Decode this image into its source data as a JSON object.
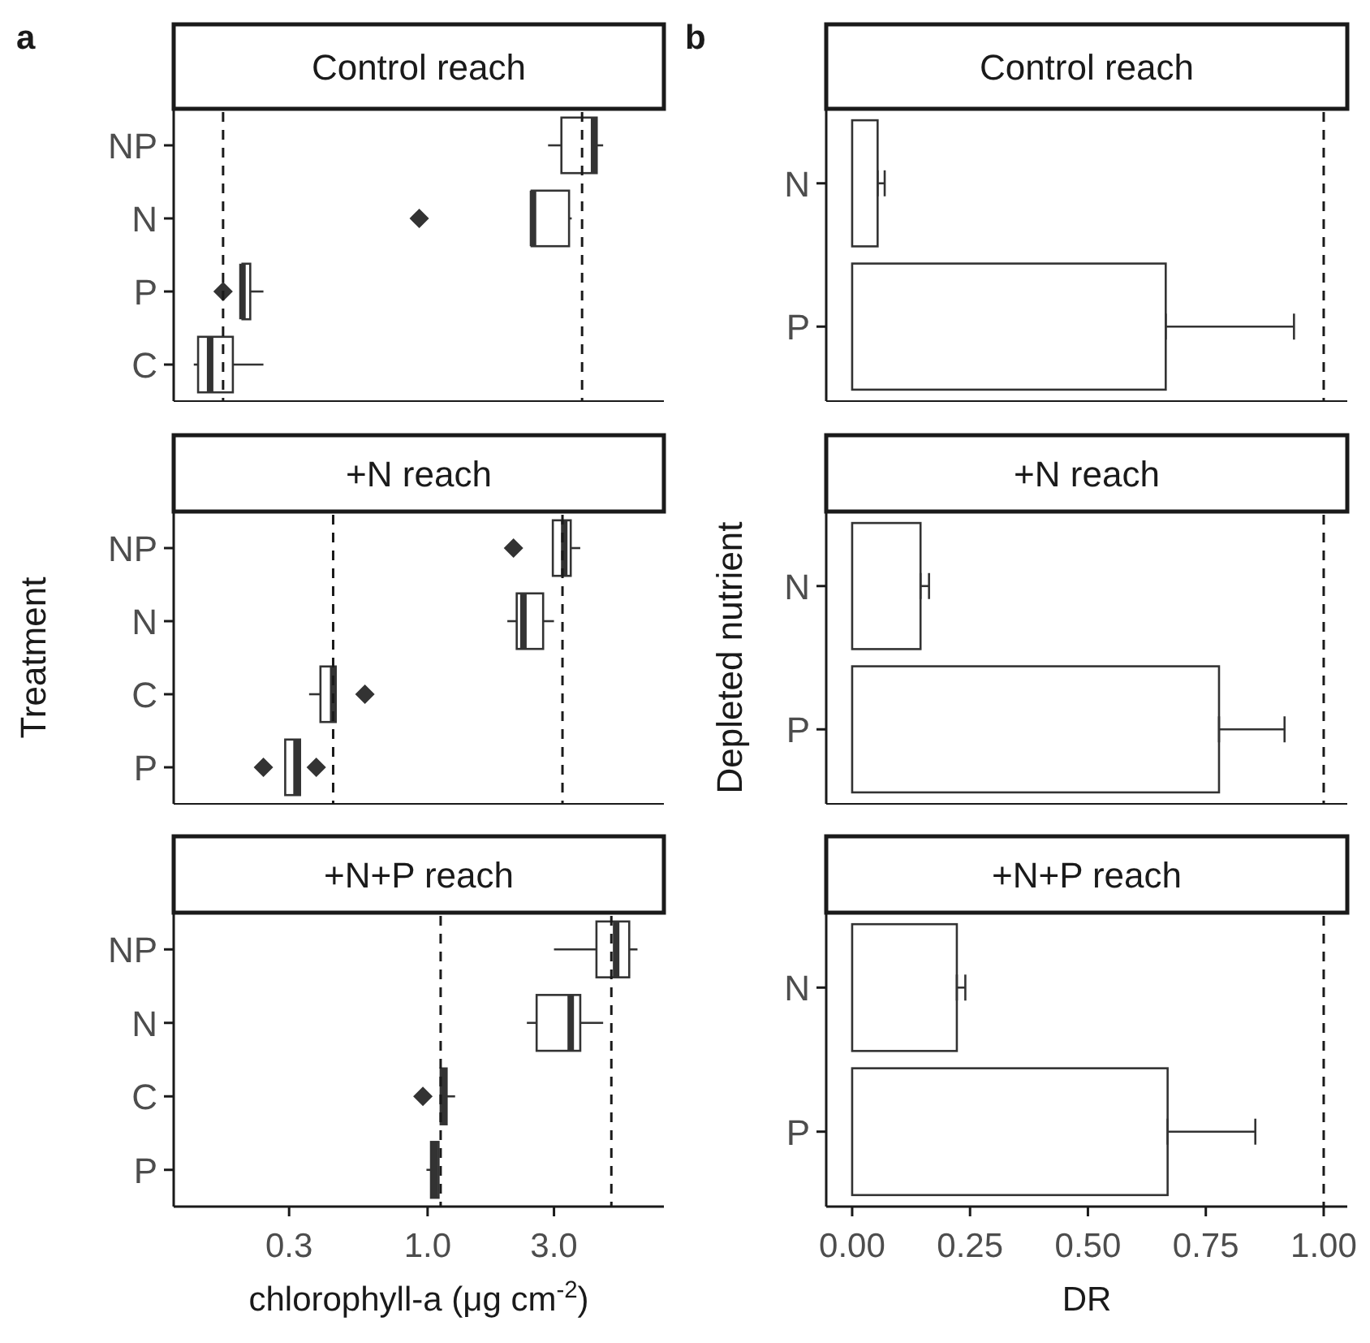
{
  "chart_data": [
    {
      "type": "box",
      "title": "Control reach",
      "orientation": "horizontal",
      "log": "x",
      "color": "#ffffff",
      "annotations": [
        "a"
      ],
      "categories": [
        "NP",
        "N",
        "P",
        "C"
      ],
      "xlim": [
        0.11,
        7.8
      ],
      "tick_labels": "y",
      "boxes": [
        {
          "low": 2.85,
          "q1": 3.2,
          "median": 4.25,
          "q3": 4.35,
          "high": 4.6
        },
        {
          "low": 2.47,
          "q1": 2.47,
          "median": 2.5,
          "q3": 3.42,
          "high": 3.5,
          "outliers": [
            0.93
          ]
        },
        {
          "low": 0.2,
          "q1": 0.2,
          "median": 0.2,
          "q3": 0.214,
          "high": 0.24,
          "outliers": [
            0.169
          ]
        },
        {
          "low": 0.131,
          "q1": 0.136,
          "median": 0.151,
          "q3": 0.184,
          "high": 0.24
        }
      ],
      "ref_lines": [
        {
          "axis": "x",
          "value": 0.169
        },
        {
          "axis": "x",
          "value": 3.83
        }
      ]
    },
    {
      "type": "box",
      "title": "+N reach",
      "orientation": "horizontal",
      "log": "x",
      "color": "#ffffff",
      "ylabel": "Treatment",
      "categories": [
        "NP",
        "N",
        "C",
        "P"
      ],
      "xlim": [
        0.11,
        7.8
      ],
      "tick_labels": "y",
      "boxes": [
        {
          "low": 2.97,
          "q1": 2.97,
          "median": 3.28,
          "q3": 3.47,
          "high": 3.77,
          "outliers": [
            2.11
          ]
        },
        {
          "low": 2.0,
          "q1": 2.17,
          "median": 2.3,
          "q3": 2.73,
          "high": 3.0
        },
        {
          "low": 0.357,
          "q1": 0.394,
          "median": 0.44,
          "q3": 0.45,
          "high": 0.45,
          "outliers": [
            0.58
          ]
        },
        {
          "low": 0.29,
          "q1": 0.29,
          "median": 0.32,
          "q3": 0.33,
          "high": 0.33,
          "outliers": [
            0.24,
            0.38
          ]
        }
      ],
      "ref_lines": [
        {
          "axis": "x",
          "value": 0.44
        },
        {
          "axis": "x",
          "value": 3.23
        }
      ]
    },
    {
      "type": "box",
      "title": "+N+P reach",
      "orientation": "horizontal",
      "log": "x",
      "color": "#ffffff",
      "xlabel": "chlorophyll-a (μg cm$^{-2}$)",
      "categories": [
        "NP",
        "N",
        "C",
        "P"
      ],
      "xlim": [
        0.11,
        7.8
      ],
      "xticks": [
        0.3,
        {
          "value": 1,
          "label": "1.0"
        },
        {
          "value": 3,
          "label": "3.0"
        }
      ],
      "boxes": [
        {
          "low": 3.0,
          "q1": 4.34,
          "median": 5.15,
          "q3": 5.77,
          "high": 6.2
        },
        {
          "low": 2.37,
          "q1": 2.58,
          "median": 3.47,
          "q3": 3.77,
          "high": 4.6
        },
        {
          "low": 1.12,
          "q1": 1.12,
          "median": 1.15,
          "q3": 1.18,
          "high": 1.27,
          "outliers": [
            0.96
          ]
        },
        {
          "low": 0.99,
          "q1": 1.03,
          "median": 1.06,
          "q3": 1.1,
          "high": 1.1
        }
      ],
      "ref_lines": [
        {
          "axis": "x",
          "value": 1.12
        },
        {
          "axis": "x",
          "value": 4.94
        }
      ]
    },
    {
      "type": "bar",
      "title": "Control reach",
      "orientation": "horizontal",
      "color": "#ffffff",
      "annotations": [
        "b"
      ],
      "categories": [
        "N",
        "P"
      ],
      "values": [
        0.054,
        0.665
      ],
      "errors": [
        [
          0.054,
          0.069
        ],
        [
          0.665,
          0.937
        ]
      ],
      "xlim": [
        -0.055,
        1.05
      ],
      "tick_labels": "y",
      "ref_lines": [
        {
          "axis": "x",
          "value": 1.0
        }
      ]
    },
    {
      "type": "bar",
      "title": "+N reach",
      "orientation": "horizontal",
      "color": "#ffffff",
      "ylabel": "Depleted nutrient",
      "categories": [
        "N",
        "P"
      ],
      "values": [
        0.145,
        0.778
      ],
      "errors": [
        [
          0.145,
          0.163
        ],
        [
          0.778,
          0.917
        ]
      ],
      "xlim": [
        -0.055,
        1.05
      ],
      "tick_labels": "y",
      "ref_lines": [
        {
          "axis": "x",
          "value": 1.0
        }
      ]
    },
    {
      "type": "bar",
      "title": "+N+P reach",
      "orientation": "horizontal",
      "color": "#ffffff",
      "xlabel": "DR",
      "categories": [
        "N",
        "P"
      ],
      "values": [
        0.222,
        0.669
      ],
      "errors": [
        [
          0.222,
          0.24
        ],
        [
          0.669,
          0.855
        ]
      ],
      "xlim": [
        -0.055,
        1.05
      ],
      "xticks": [
        {
          "value": 0,
          "label": "0.00"
        },
        {
          "value": 0.25,
          "label": "0.25"
        },
        {
          "value": 0.5,
          "label": "0.50"
        },
        {
          "value": 0.75,
          "label": "0.75"
        },
        {
          "value": 1,
          "label": "1.00"
        }
      ],
      "ref_lines": [
        {
          "axis": "x",
          "value": 1.0
        }
      ]
    }
  ]
}
